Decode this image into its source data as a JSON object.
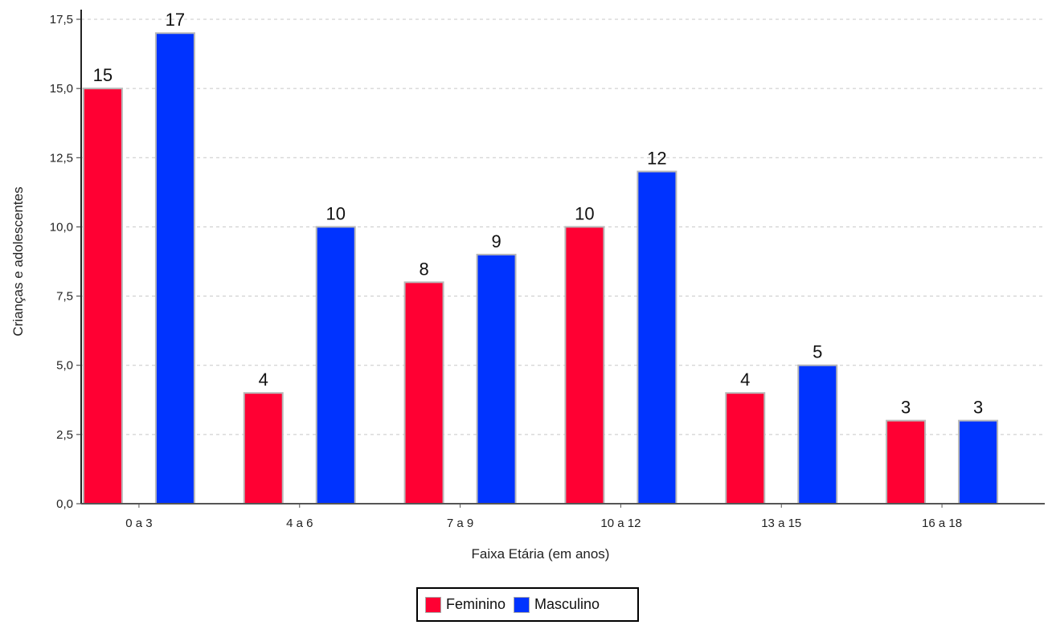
{
  "chart_data": {
    "type": "bar",
    "xlabel": "Faixa Etária (em anos)",
    "ylabel": "Crianças e adolescentes",
    "categories": [
      "0 a 3",
      "4 a 6",
      "7 a 9",
      "10 a 12",
      "13 a 15",
      "16 a 18"
    ],
    "series": [
      {
        "name": "Feminino",
        "color": "#ff0033",
        "values": [
          15,
          4,
          8,
          10,
          4,
          3
        ]
      },
      {
        "name": "Masculino",
        "color": "#0033ff",
        "values": [
          17,
          10,
          9,
          12,
          5,
          3
        ]
      }
    ],
    "ylim": [
      0,
      17.5
    ],
    "yticks": [
      0,
      2.5,
      5,
      7.5,
      10,
      12.5,
      15,
      17.5
    ],
    "ytick_labels": [
      "0,0",
      "2,5",
      "5,0",
      "7,5",
      "10,0",
      "12,5",
      "15,0",
      "17,5"
    ],
    "grid": true,
    "legend_position": "bottom-center"
  }
}
